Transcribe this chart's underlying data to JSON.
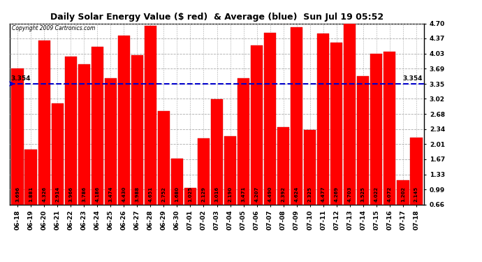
{
  "title": "Daily Solar Energy Value ($ red)  & Average (blue)  Sun Jul 19 05:52",
  "copyright": "Copyright 2009 Cartronics.com",
  "average": 3.354,
  "average_label": "3.354",
  "bar_color": "#FF0000",
  "average_color": "#0000CC",
  "background_color": "#FFFFFF",
  "plot_bg_color": "#FFFFFF",
  "categories": [
    "06-18",
    "06-19",
    "06-20",
    "06-21",
    "06-22",
    "06-23",
    "06-24",
    "06-25",
    "06-26",
    "06-27",
    "06-28",
    "06-29",
    "06-30",
    "07-01",
    "07-02",
    "07-03",
    "07-04",
    "07-05",
    "07-06",
    "07-07",
    "07-08",
    "07-09",
    "07-10",
    "07-11",
    "07-12",
    "07-13",
    "07-14",
    "07-15",
    "07-16",
    "07-17",
    "07-18"
  ],
  "values": [
    3.696,
    1.881,
    4.326,
    2.914,
    3.966,
    3.786,
    4.186,
    3.474,
    4.43,
    3.988,
    4.651,
    2.752,
    1.68,
    1.025,
    2.129,
    3.016,
    2.19,
    3.471,
    4.207,
    4.49,
    2.392,
    4.624,
    2.325,
    4.477,
    4.269,
    4.703,
    3.525,
    4.022,
    4.072,
    1.202,
    2.145
  ],
  "ylim": [
    0.66,
    4.7
  ],
  "yticks": [
    0.66,
    0.99,
    1.33,
    1.67,
    2.01,
    2.34,
    2.68,
    3.02,
    3.35,
    3.69,
    4.03,
    4.37,
    4.7
  ],
  "grid_color": "#AAAAAA",
  "bar_edge_color": "#CC0000",
  "value_fontsize": 5.0,
  "tick_fontsize": 6.5,
  "title_fontsize": 9.0
}
